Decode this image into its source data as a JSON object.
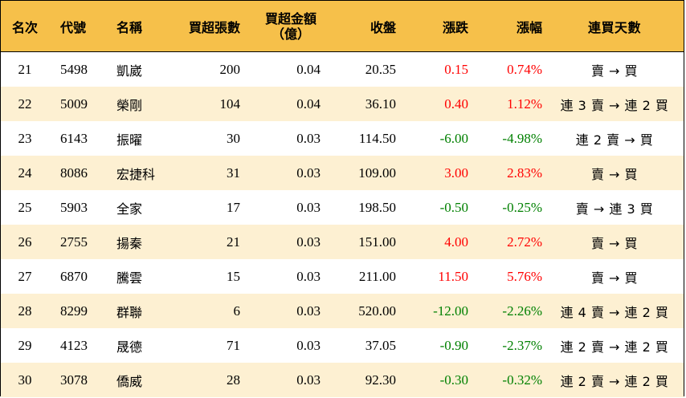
{
  "colors": {
    "header_bg": "#f6c04a",
    "alt_row_bg": "#fdf0d2",
    "up": "#ff0000",
    "down": "#008000"
  },
  "headers": {
    "rank": "名次",
    "code": "代號",
    "name": "名稱",
    "volume": "買超張數",
    "amount_line1": "買超金額",
    "amount_line2": "（億）",
    "close": "收盤",
    "change": "漲跌",
    "pct": "漲幅",
    "days": "連買天數"
  },
  "rows": [
    {
      "rank": "21",
      "code": "5498",
      "name": "凱崴",
      "volume": "200",
      "amount": "0.04",
      "close": "20.35",
      "change": "0.15",
      "pct": "0.74%",
      "days": "賣 → 買",
      "dir": "up"
    },
    {
      "rank": "22",
      "code": "5009",
      "name": "榮剛",
      "volume": "104",
      "amount": "0.04",
      "close": "36.10",
      "change": "0.40",
      "pct": "1.12%",
      "days": "連 3 賣 → 連 2 買",
      "dir": "up"
    },
    {
      "rank": "23",
      "code": "6143",
      "name": "振曜",
      "volume": "30",
      "amount": "0.03",
      "close": "114.50",
      "change": "-6.00",
      "pct": "-4.98%",
      "days": "連 2 賣 → 買",
      "dir": "down"
    },
    {
      "rank": "24",
      "code": "8086",
      "name": "宏捷科",
      "volume": "31",
      "amount": "0.03",
      "close": "109.00",
      "change": "3.00",
      "pct": "2.83%",
      "days": "賣 → 買",
      "dir": "up"
    },
    {
      "rank": "25",
      "code": "5903",
      "name": "全家",
      "volume": "17",
      "amount": "0.03",
      "close": "198.50",
      "change": "-0.50",
      "pct": "-0.25%",
      "days": "賣 → 連 3 買",
      "dir": "down"
    },
    {
      "rank": "26",
      "code": "2755",
      "name": "揚秦",
      "volume": "21",
      "amount": "0.03",
      "close": "151.00",
      "change": "4.00",
      "pct": "2.72%",
      "days": "賣 → 買",
      "dir": "up"
    },
    {
      "rank": "27",
      "code": "6870",
      "name": "騰雲",
      "volume": "15",
      "amount": "0.03",
      "close": "211.00",
      "change": "11.50",
      "pct": "5.76%",
      "days": "賣 → 買",
      "dir": "up"
    },
    {
      "rank": "28",
      "code": "8299",
      "name": "群聯",
      "volume": "6",
      "amount": "0.03",
      "close": "520.00",
      "change": "-12.00",
      "pct": "-2.26%",
      "days": "連 4 賣 → 連 2 買",
      "dir": "down"
    },
    {
      "rank": "29",
      "code": "4123",
      "name": "晟德",
      "volume": "71",
      "amount": "0.03",
      "close": "37.05",
      "change": "-0.90",
      "pct": "-2.37%",
      "days": "連 2 賣 → 連 2 買",
      "dir": "down"
    },
    {
      "rank": "30",
      "code": "3078",
      "name": "僑威",
      "volume": "28",
      "amount": "0.03",
      "close": "92.30",
      "change": "-0.30",
      "pct": "-0.32%",
      "days": "連 2 賣 → 連 2 買",
      "dir": "down"
    }
  ]
}
